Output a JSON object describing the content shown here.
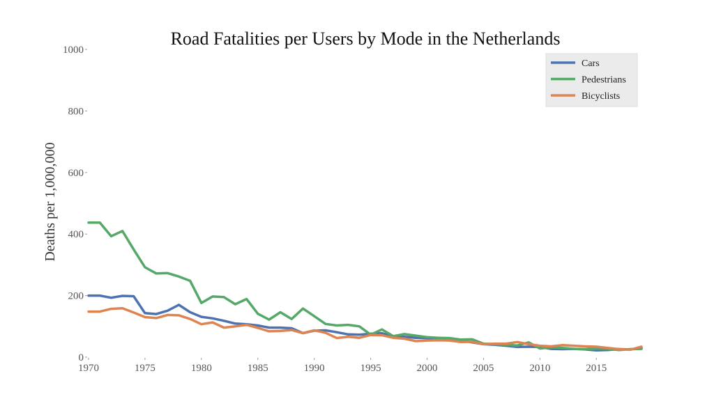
{
  "chart_data": {
    "type": "line",
    "title": "Road Fatalities per Users by Mode in the Netherlands",
    "xlabel": "",
    "ylabel": "Deaths per 1,000,000",
    "xlim": [
      1970,
      2019
    ],
    "ylim": [
      0,
      1000
    ],
    "x_ticks": [
      "1970",
      "1975",
      "1980",
      "1985",
      "1990",
      "1995",
      "2000",
      "2005",
      "2010",
      "2015"
    ],
    "y_ticks": [
      "0",
      "200",
      "400",
      "600",
      "800",
      "1000"
    ],
    "grid": false,
    "legend_position": "top-right",
    "x": [
      1970,
      1971,
      1972,
      1973,
      1974,
      1975,
      1976,
      1977,
      1978,
      1979,
      1980,
      1981,
      1982,
      1983,
      1984,
      1985,
      1986,
      1987,
      1988,
      1989,
      1990,
      1991,
      1992,
      1993,
      1994,
      1995,
      1996,
      1997,
      1998,
      1999,
      2000,
      2001,
      2002,
      2003,
      2004,
      2005,
      2006,
      2007,
      2008,
      2009,
      2010,
      2011,
      2012,
      2013,
      2014,
      2015,
      2016,
      2017,
      2018,
      2019
    ],
    "series": [
      {
        "name": "Cars",
        "color": "#4c72b0",
        "values": [
          200,
          200,
          193,
          199,
          198,
          143,
          140,
          151,
          170,
          146,
          131,
          126,
          118,
          109,
          107,
          103,
          96,
          96,
          94,
          78,
          86,
          87,
          81,
          74,
          73,
          76,
          78,
          66,
          66,
          63,
          62,
          59,
          57,
          54,
          48,
          42,
          40,
          37,
          33,
          34,
          33,
          27,
          26,
          27,
          25,
          22,
          23,
          26,
          25,
          30
        ]
      },
      {
        "name": "Pedestrians",
        "color": "#55a868",
        "values": [
          437,
          437,
          393,
          410,
          350,
          292,
          272,
          273,
          262,
          248,
          176,
          197,
          195,
          172,
          189,
          141,
          122,
          146,
          124,
          158,
          133,
          108,
          103,
          105,
          100,
          73,
          90,
          68,
          75,
          70,
          65,
          63,
          62,
          57,
          58,
          44,
          42,
          40,
          38,
          48,
          28,
          32,
          30,
          27,
          26,
          28,
          27,
          23,
          26,
          27
        ]
      },
      {
        "name": "Bicyclists",
        "color": "#dd8452",
        "values": [
          148,
          148,
          157,
          159,
          145,
          130,
          127,
          137,
          136,
          124,
          107,
          113,
          96,
          100,
          105,
          95,
          84,
          85,
          88,
          78,
          87,
          79,
          62,
          66,
          63,
          72,
          71,
          63,
          60,
          52,
          54,
          55,
          54,
          49,
          50,
          42,
          44,
          44,
          49,
          42,
          37,
          35,
          39,
          37,
          35,
          34,
          30,
          26,
          24,
          34
        ]
      }
    ]
  }
}
